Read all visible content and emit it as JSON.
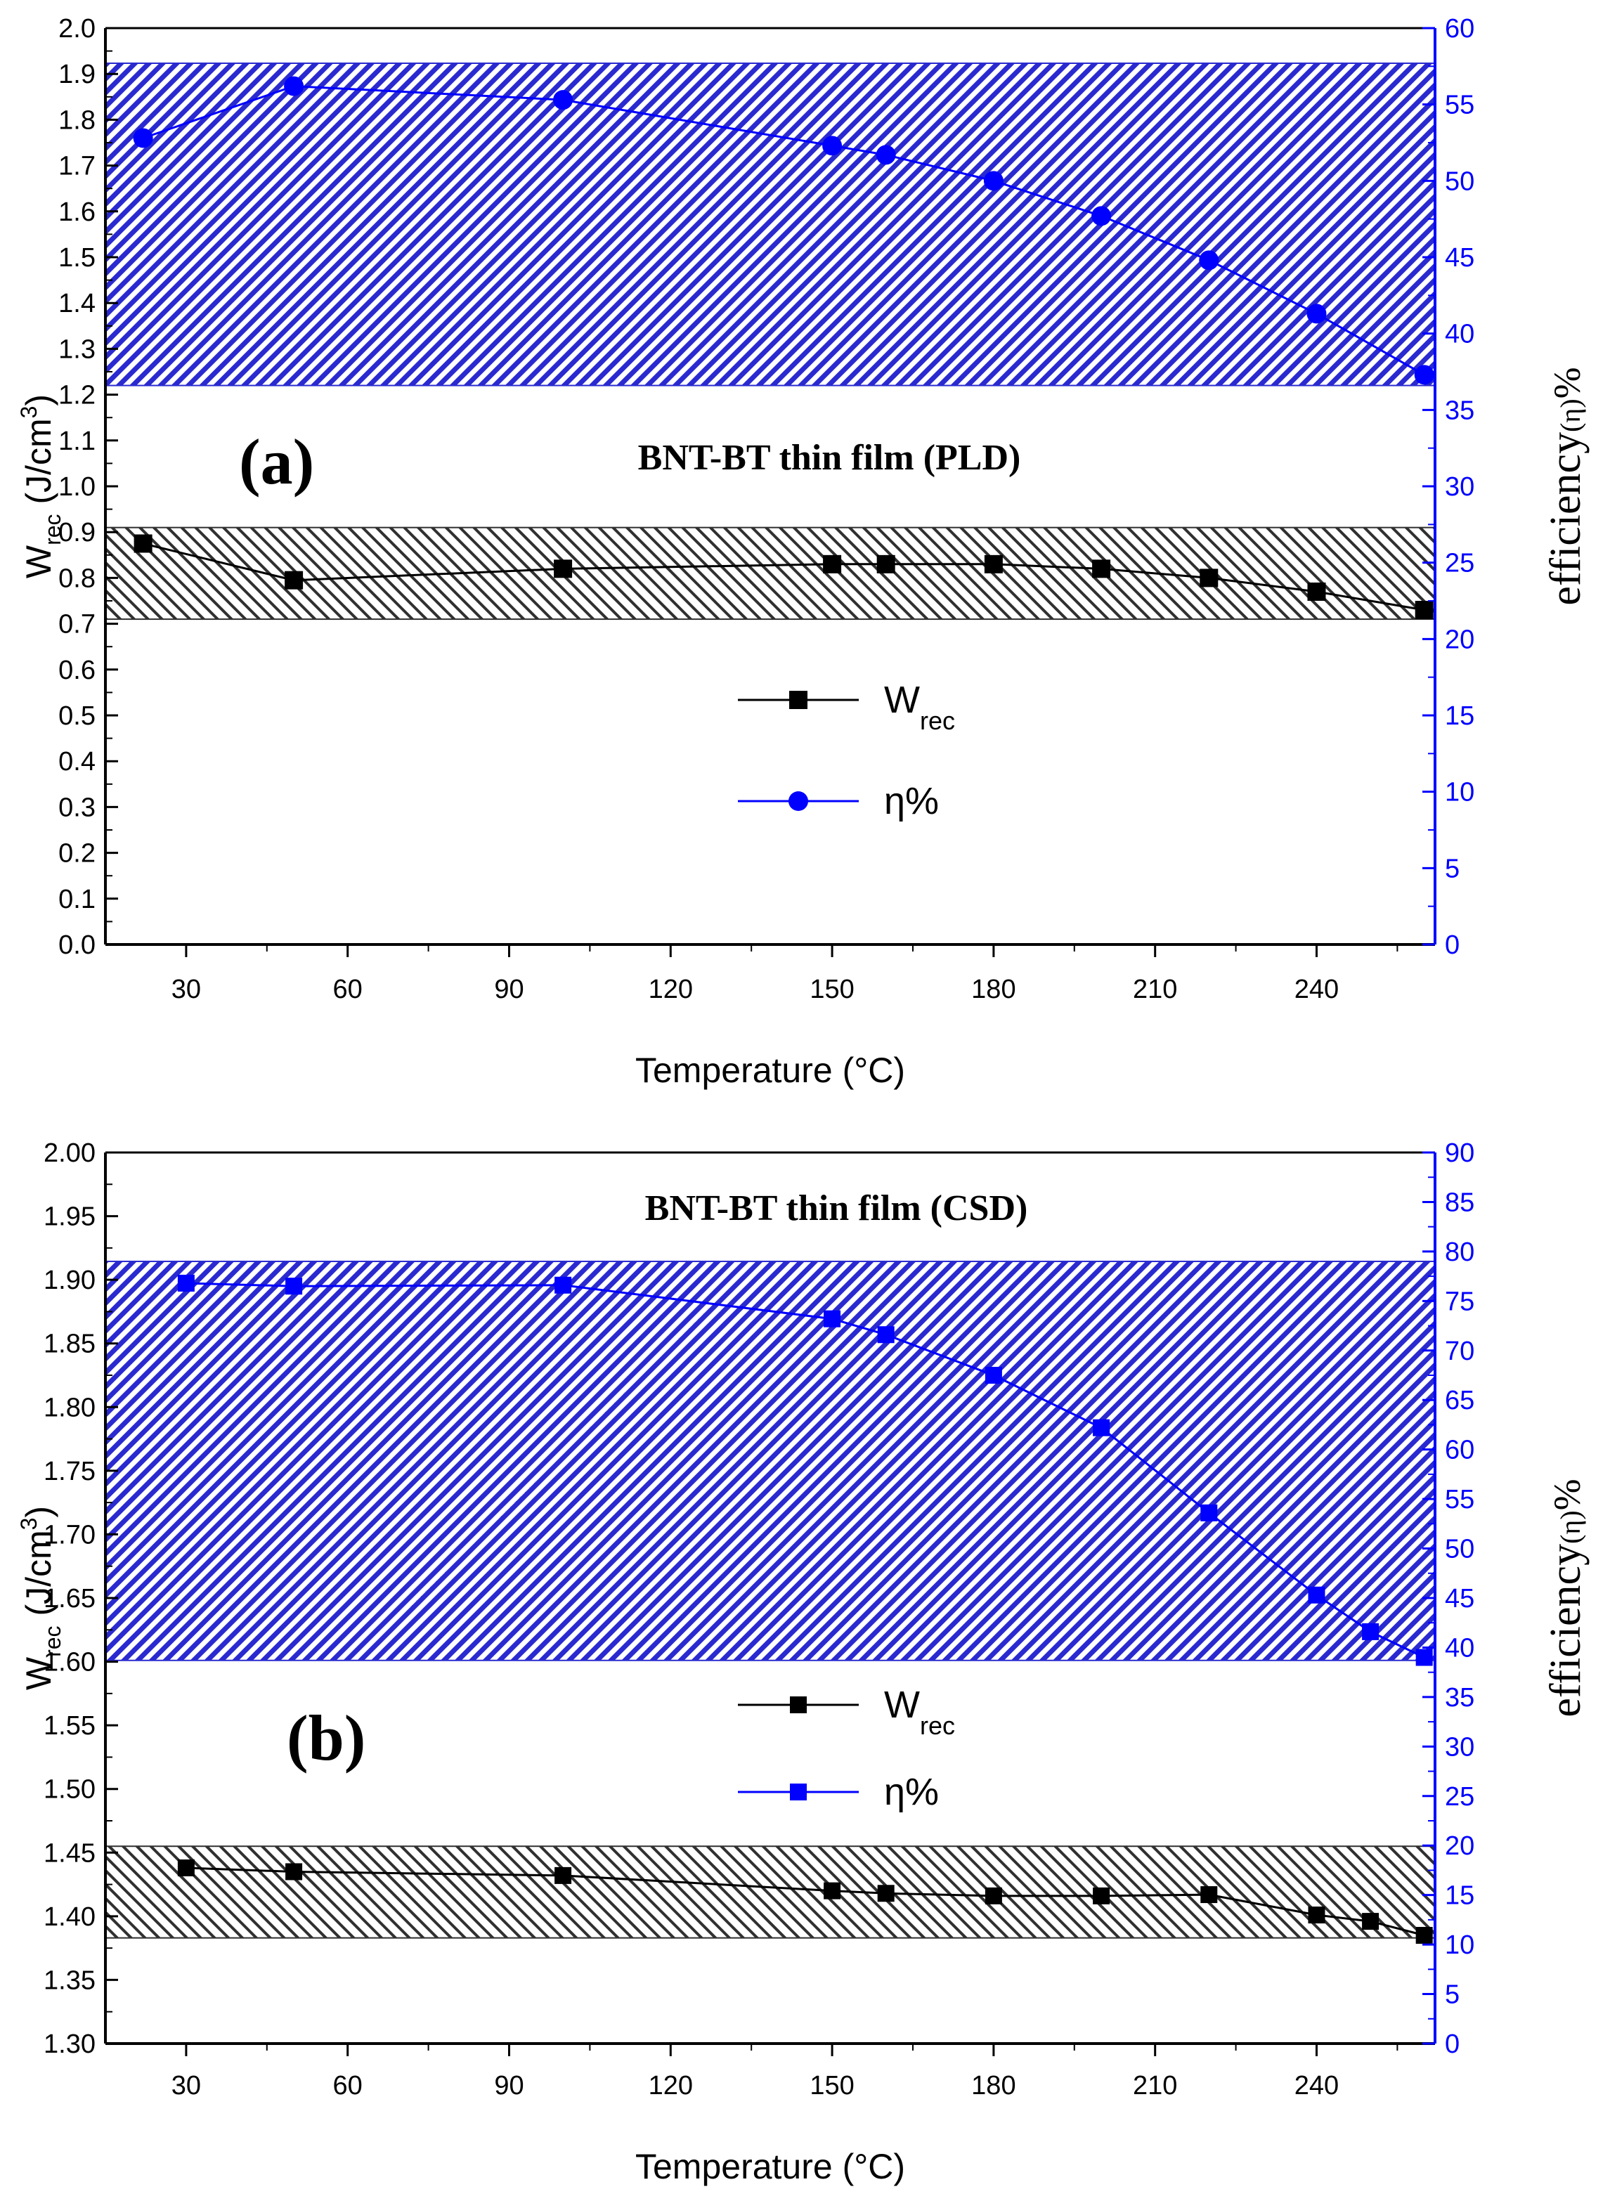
{
  "chart_data": [
    {
      "type": "line",
      "panel_label": "(a)",
      "annotation": "BNT-BT thin film (PLD)",
      "xlabel": "Temperature (°C)",
      "ylabel_main": "W",
      "ylabel_sub": "rec",
      "ylabel_unit": " (J/cm",
      "ylabel_sup": "3",
      "ylabel_close": ")",
      "y2label_main": "efficiency",
      "y2label_greek": "(η)",
      "y2label_pct": "%",
      "xlim": [
        15,
        262
      ],
      "ylim": [
        0.0,
        2.0
      ],
      "y2lim": [
        0,
        60
      ],
      "xticks": [
        "30",
        "60",
        "90",
        "120",
        "150",
        "180",
        "210",
        "240"
      ],
      "yticks": [
        "0.0",
        "0.1",
        "0.2",
        "0.3",
        "0.4",
        "0.5",
        "0.6",
        "0.7",
        "0.8",
        "0.9",
        "1.0",
        "1.1",
        "1.2",
        "1.3",
        "1.4",
        "1.5",
        "1.6",
        "1.7",
        "1.8",
        "1.9",
        "2.0"
      ],
      "y2ticks": [
        "0",
        "5",
        "10",
        "15",
        "20",
        "25",
        "30",
        "35",
        "40",
        "45",
        "50",
        "55",
        "60"
      ],
      "bands": [
        {
          "axis": "y2",
          "from": 36.6,
          "to": 57.7,
          "color": "#2a2ad0"
        },
        {
          "axis": "y",
          "from": 0.71,
          "to": 0.91,
          "color": "#303030"
        }
      ],
      "series": [
        {
          "name": "W_rec",
          "label_main": "W",
          "label_sub": "rec",
          "axis": "y",
          "marker": "square",
          "color": "#000000",
          "x": [
            22,
            50,
            100,
            150,
            160,
            180,
            200,
            220,
            240,
            260
          ],
          "y": [
            0.875,
            0.795,
            0.82,
            0.83,
            0.83,
            0.83,
            0.82,
            0.8,
            0.77,
            0.73
          ]
        },
        {
          "name": "η%",
          "label_main": "η%",
          "label_sub": "",
          "axis": "y2",
          "marker": "circle",
          "color": "#0000ff",
          "x": [
            22,
            50,
            100,
            150,
            160,
            180,
            200,
            220,
            240,
            260
          ],
          "y": [
            52.8,
            56.2,
            55.3,
            52.3,
            51.7,
            50.0,
            47.7,
            44.8,
            41.3,
            37.3
          ]
        }
      ]
    },
    {
      "type": "line",
      "panel_label": "(b)",
      "annotation": "BNT-BT thin film (CSD)",
      "xlabel": "Temperature (°C)",
      "ylabel_main": "W",
      "ylabel_sub": "rec",
      "ylabel_unit": " (J/cm",
      "ylabel_sup": "3",
      "ylabel_close": ")",
      "y2label_main": "efficiency",
      "y2label_greek": "(η)",
      "y2label_pct": "%",
      "xlim": [
        15,
        262
      ],
      "ylim": [
        1.3,
        2.0
      ],
      "y2lim": [
        0,
        90
      ],
      "xticks": [
        "30",
        "60",
        "90",
        "120",
        "150",
        "180",
        "210",
        "240"
      ],
      "yticks": [
        "1.30",
        "1.35",
        "1.40",
        "1.45",
        "1.50",
        "1.55",
        "1.60",
        "1.65",
        "1.70",
        "1.75",
        "1.80",
        "1.85",
        "1.90",
        "1.95",
        "2.00"
      ],
      "y2ticks": [
        "0",
        "5",
        "10",
        "15",
        "20",
        "25",
        "30",
        "35",
        "40",
        "45",
        "50",
        "55",
        "60",
        "65",
        "70",
        "75",
        "80",
        "85",
        "90"
      ],
      "bands": [
        {
          "axis": "y2",
          "from": 38.7,
          "to": 79.0,
          "color": "#2a2ad0"
        },
        {
          "axis": "y",
          "from": 1.383,
          "to": 1.455,
          "color": "#303030"
        }
      ],
      "series": [
        {
          "name": "W_rec",
          "label_main": "W",
          "label_sub": "rec",
          "axis": "y",
          "marker": "square",
          "color": "#000000",
          "x": [
            30,
            50,
            100,
            150,
            160,
            180,
            200,
            220,
            240,
            250,
            260
          ],
          "y": [
            1.438,
            1.435,
            1.432,
            1.42,
            1.418,
            1.416,
            1.416,
            1.417,
            1.401,
            1.396,
            1.385
          ]
        },
        {
          "name": "η%",
          "label_main": "η%",
          "label_sub": "",
          "axis": "y2",
          "marker": "square",
          "color": "#0000ff",
          "x": [
            30,
            50,
            100,
            150,
            160,
            180,
            200,
            220,
            240,
            250,
            260
          ],
          "y": [
            76.8,
            76.5,
            76.6,
            73.2,
            71.6,
            67.5,
            62.2,
            53.6,
            45.3,
            41.6,
            39.0
          ]
        }
      ]
    }
  ]
}
